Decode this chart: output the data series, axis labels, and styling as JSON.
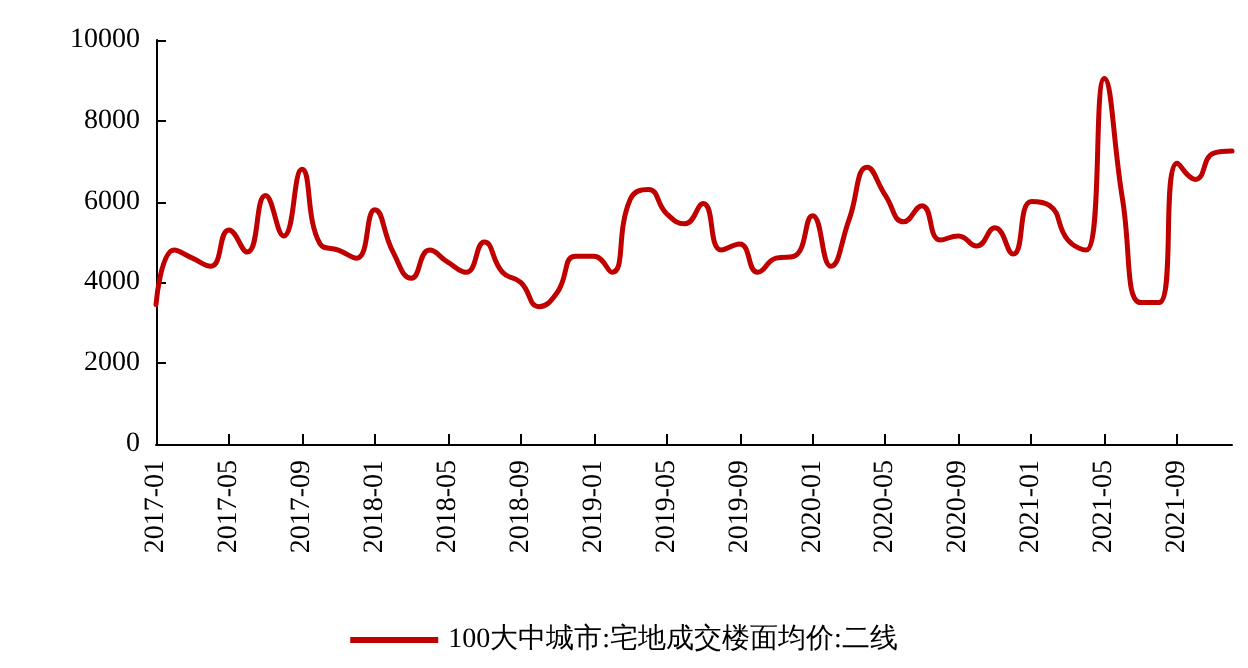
{
  "chart_data": {
    "type": "line",
    "categories": [
      "2017-01",
      null,
      null,
      null,
      "2017-05",
      null,
      null,
      null,
      "2017-09",
      null,
      null,
      null,
      "2018-01",
      null,
      null,
      null,
      "2018-05",
      null,
      null,
      null,
      "2018-09",
      null,
      null,
      null,
      "2019-01",
      null,
      null,
      null,
      "2019-05",
      null,
      null,
      null,
      "2019-09",
      null,
      null,
      null,
      "2020-01",
      null,
      null,
      null,
      "2020-05",
      null,
      null,
      null,
      "2020-09",
      null,
      null,
      null,
      "2021-01",
      null,
      null,
      null,
      "2021-05",
      null,
      null,
      null,
      "2021-09",
      null,
      null,
      null
    ],
    "series": [
      {
        "name": "100大中城市:宅地成交楼面均价:二线",
        "color": "#c00000",
        "values": [
          3450,
          4800,
          4600,
          4400,
          5300,
          4750,
          6150,
          5150,
          6800,
          4950,
          4800,
          4600,
          5800,
          4750,
          4100,
          4800,
          4500,
          4250,
          5000,
          4250,
          4000,
          3400,
          3750,
          4650,
          4650,
          4250,
          6050,
          6300,
          5700,
          5450,
          5950,
          4800,
          4950,
          4250,
          4600,
          4650,
          5650,
          4400,
          5550,
          6850,
          6150,
          5500,
          5900,
          5050,
          5150,
          4900,
          5350,
          4700,
          6000,
          5900,
          5050,
          4800,
          9050,
          6050,
          3500,
          3500,
          6950,
          6550,
          7200,
          7250
        ]
      }
    ],
    "ylim": [
      0,
      10000
    ],
    "yticks": [
      0,
      2000,
      4000,
      6000,
      8000,
      10000
    ],
    "grid": false,
    "legend": "bottom",
    "marker": "none",
    "line_style": "solid"
  }
}
